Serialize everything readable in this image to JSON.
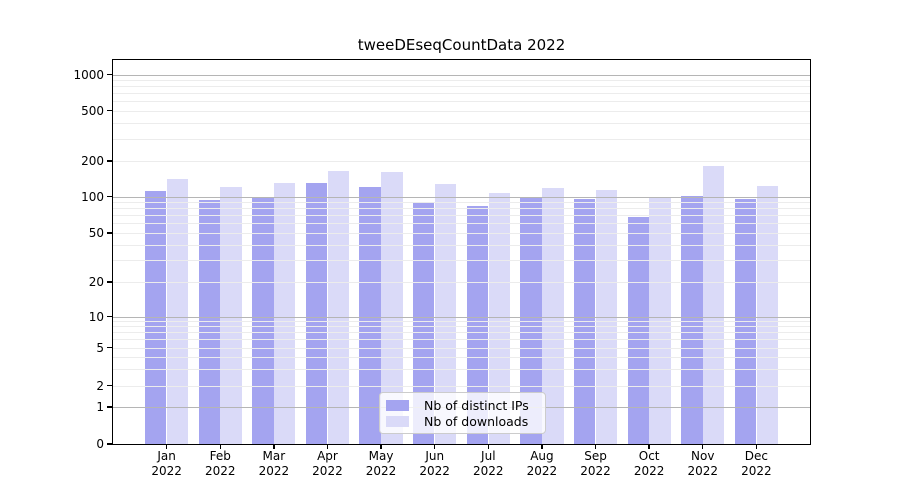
{
  "chart_data": {
    "type": "bar",
    "title": "tweeDEseqCountData 2022",
    "categories": [
      "Jan 2022",
      "Feb 2022",
      "Mar 2022",
      "Apr 2022",
      "May 2022",
      "Jun 2022",
      "Jul 2022",
      "Aug 2022",
      "Sep 2022",
      "Oct 2022",
      "Nov 2022",
      "Dec 2022"
    ],
    "series": [
      {
        "name": "Nb of distinct IPs",
        "color": "#A4A4F0",
        "values": [
          112,
          93,
          99,
          131,
          121,
          88,
          84,
          97,
          95,
          68,
          101,
          95
        ]
      },
      {
        "name": "Nb of downloads",
        "color": "#DADAF8",
        "values": [
          141,
          121,
          130,
          166,
          160,
          127,
          107,
          118,
          114,
          98,
          182,
          123
        ]
      }
    ],
    "yscale": "symlog",
    "yticks": [
      0,
      1,
      2,
      5,
      10,
      20,
      50,
      100,
      200,
      500,
      1000
    ],
    "ylim": [
      0,
      1286
    ],
    "grid": true,
    "legend_position": "lower center",
    "gridline_major_values": [
      1,
      10,
      100,
      1000
    ],
    "gridline_minor_values": [
      2,
      3,
      4,
      5,
      6,
      7,
      8,
      9,
      20,
      30,
      40,
      50,
      60,
      70,
      80,
      90,
      200,
      300,
      400,
      500,
      600,
      700,
      800,
      900
    ]
  }
}
